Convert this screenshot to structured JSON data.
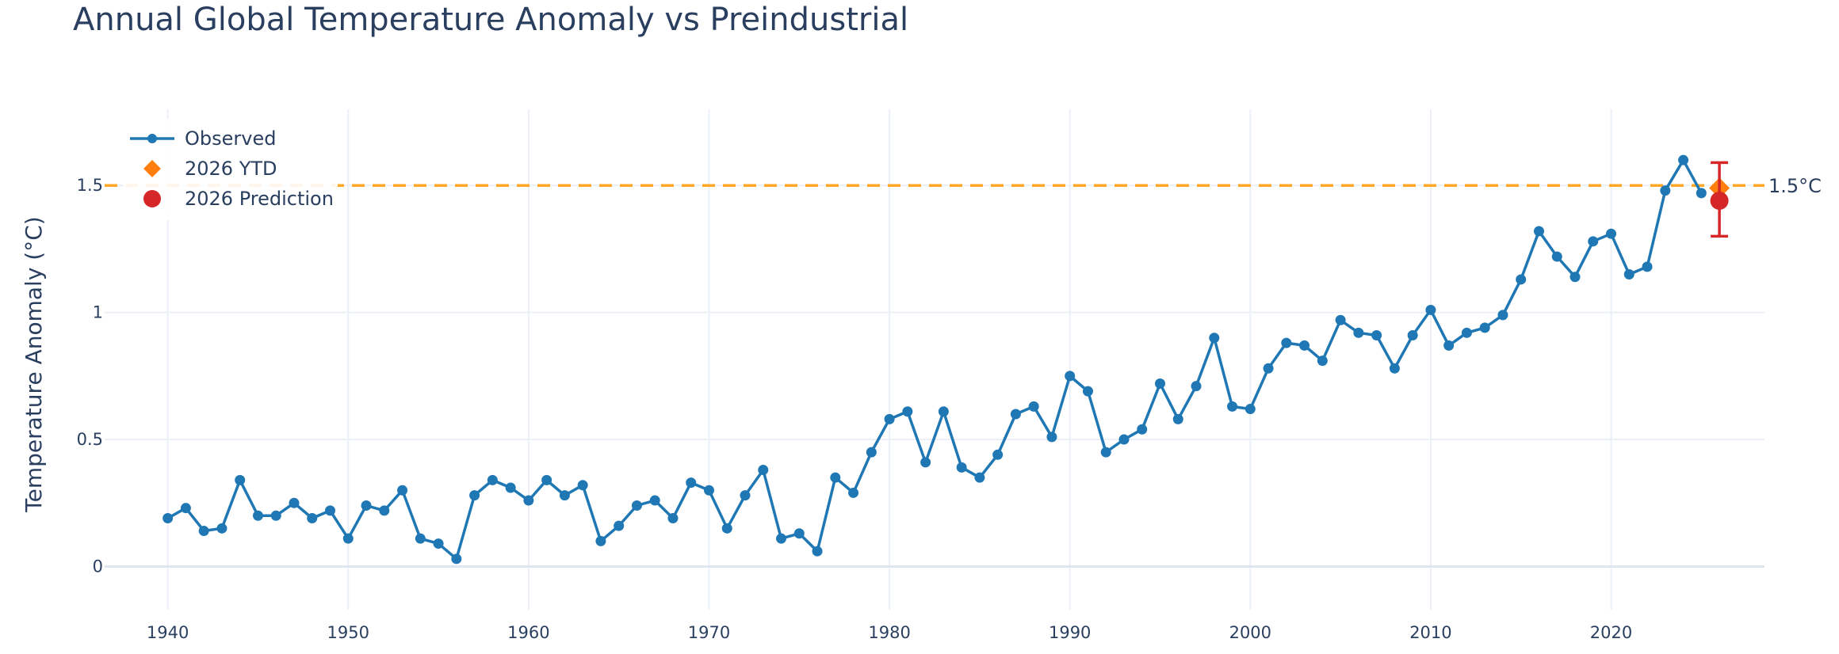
{
  "chart_data": {
    "type": "line",
    "title": "Annual Global Temperature Anomaly vs Preindustrial",
    "ylabel": "Temperature Anomaly (°C)",
    "xlabel": "",
    "xlim": [
      1936.5,
      2028.5
    ],
    "ylim": [
      -0.17,
      1.8
    ],
    "x_ticks": [
      1940,
      1950,
      1960,
      1970,
      1980,
      1990,
      2000,
      2010,
      2020
    ],
    "y_ticks": [
      0,
      0.5,
      1,
      1.5
    ],
    "y_tick_labels": [
      "0",
      "0.5",
      "1",
      "1.5"
    ],
    "grid": true,
    "legend_position": "top-left",
    "series": [
      {
        "name": "Observed",
        "color": "#1f77b4",
        "x": [
          1940,
          1941,
          1942,
          1943,
          1944,
          1945,
          1946,
          1947,
          1948,
          1949,
          1950,
          1951,
          1952,
          1953,
          1954,
          1955,
          1956,
          1957,
          1958,
          1959,
          1960,
          1961,
          1962,
          1963,
          1964,
          1965,
          1966,
          1967,
          1968,
          1969,
          1970,
          1971,
          1972,
          1973,
          1974,
          1975,
          1976,
          1977,
          1978,
          1979,
          1980,
          1981,
          1982,
          1983,
          1984,
          1985,
          1986,
          1987,
          1988,
          1989,
          1990,
          1991,
          1992,
          1993,
          1994,
          1995,
          1996,
          1997,
          1998,
          1999,
          2000,
          2001,
          2002,
          2003,
          2004,
          2005,
          2006,
          2007,
          2008,
          2009,
          2010,
          2011,
          2012,
          2013,
          2014,
          2015,
          2016,
          2017,
          2018,
          2019,
          2020,
          2021,
          2022,
          2023,
          2024,
          2025
        ],
        "y": [
          0.19,
          0.23,
          0.14,
          0.15,
          0.34,
          0.2,
          0.2,
          0.25,
          0.19,
          0.22,
          0.11,
          0.24,
          0.22,
          0.3,
          0.11,
          0.09,
          0.03,
          0.28,
          0.34,
          0.31,
          0.26,
          0.34,
          0.28,
          0.32,
          0.1,
          0.16,
          0.24,
          0.26,
          0.19,
          0.33,
          0.3,
          0.15,
          0.28,
          0.38,
          0.11,
          0.13,
          0.06,
          0.35,
          0.29,
          0.45,
          0.58,
          0.61,
          0.41,
          0.61,
          0.39,
          0.35,
          0.44,
          0.6,
          0.63,
          0.51,
          0.75,
          0.69,
          0.45,
          0.5,
          0.54,
          0.72,
          0.58,
          0.71,
          0.9,
          0.63,
          0.62,
          0.78,
          0.88,
          0.87,
          0.81,
          0.97,
          0.92,
          0.91,
          0.78,
          0.91,
          1.01,
          0.87,
          0.92,
          0.94,
          0.99,
          1.13,
          1.32,
          1.22,
          1.14,
          1.28,
          1.31,
          1.15,
          1.18,
          1.48,
          1.6,
          1.47
        ]
      },
      {
        "name": "2026 YTD",
        "color": "#ff7f0e",
        "x": [
          2026
        ],
        "y": [
          1.49
        ]
      },
      {
        "name": "2026 Prediction",
        "color": "#d62728",
        "x": [
          2026
        ],
        "y": [
          1.44
        ],
        "error_low": 1.3,
        "error_high": 1.59
      }
    ],
    "reference_line": {
      "y": 1.5,
      "label": "1.5°C",
      "color": "#ffa726"
    }
  }
}
